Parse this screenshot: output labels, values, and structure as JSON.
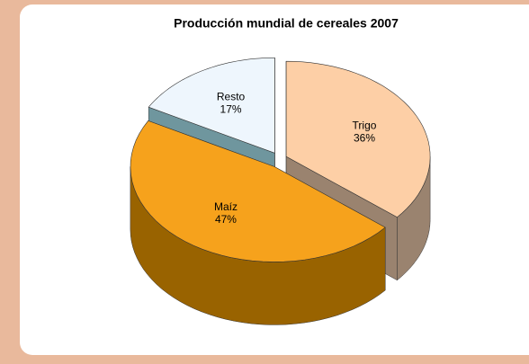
{
  "chart_data": {
    "type": "pie",
    "title": "Producción mundial de cereales 2007",
    "categories": [
      "Trigo",
      "Maíz",
      "Resto"
    ],
    "values": [
      36,
      47,
      17
    ],
    "value_labels": [
      "36%",
      "47%",
      "17%"
    ],
    "colors": [
      "#fdcfa6",
      "#f6a21c",
      "#eef6fd"
    ],
    "side_colors": [
      "#9a836f",
      "#996300",
      "#6f969e"
    ]
  }
}
